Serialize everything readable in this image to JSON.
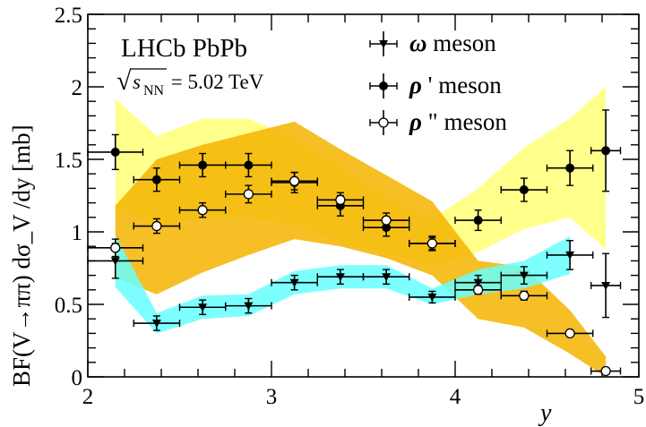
{
  "chart_data": {
    "type": "scatter",
    "title": "LHCb PbPb",
    "subtitle": {
      "sqrt": "√",
      "symbol": "s",
      "subscript": "NN",
      "value": " = 5.02 TeV"
    },
    "xlabel": "y",
    "ylabel": "BF(V→ππ) dσ_V /dy [mb]",
    "xlim": [
      2,
      5
    ],
    "ylim": [
      0,
      2.5
    ],
    "xticks": [
      "2",
      "3",
      "4",
      "5"
    ],
    "yticks": [
      "0",
      "0.5",
      "1",
      "1.5",
      "2",
      "2.5"
    ],
    "legend_position": "top-right",
    "colors": {
      "rho_prime_band": "#ffff80",
      "rho_doubleprime_band": "#f5b400",
      "omega_band": "#66ffff",
      "markers": "#000000"
    },
    "series": [
      {
        "name": "ω meson",
        "legend_symbol": "ω",
        "legend_suffix": " meson",
        "marker": "triangle-down",
        "points": [
          {
            "x": 2.15,
            "xerr": 0.15,
            "y": 0.8,
            "yerr": 0.12
          },
          {
            "x": 2.375,
            "xerr": 0.125,
            "y": 0.37,
            "yerr": 0.05
          },
          {
            "x": 2.625,
            "xerr": 0.125,
            "y": 0.48,
            "yerr": 0.05
          },
          {
            "x": 2.875,
            "xerr": 0.125,
            "y": 0.49,
            "yerr": 0.05
          },
          {
            "x": 3.125,
            "xerr": 0.125,
            "y": 0.65,
            "yerr": 0.05
          },
          {
            "x": 3.375,
            "xerr": 0.125,
            "y": 0.69,
            "yerr": 0.05
          },
          {
            "x": 3.625,
            "xerr": 0.125,
            "y": 0.69,
            "yerr": 0.05
          },
          {
            "x": 3.875,
            "xerr": 0.125,
            "y": 0.55,
            "yerr": 0.04
          },
          {
            "x": 4.125,
            "xerr": 0.125,
            "y": 0.65,
            "yerr": 0.05
          },
          {
            "x": 4.375,
            "xerr": 0.125,
            "y": 0.7,
            "yerr": 0.06
          },
          {
            "x": 4.625,
            "xerr": 0.125,
            "y": 0.84,
            "yerr": 0.1
          },
          {
            "x": 4.82,
            "xerr": 0.08,
            "y": 0.63,
            "yerr": 0.22
          }
        ],
        "band": [
          {
            "x": 2.15,
            "lo": 0.62,
            "hi": 0.98
          },
          {
            "x": 2.375,
            "lo": 0.3,
            "hi": 0.44
          },
          {
            "x": 2.625,
            "lo": 0.4,
            "hi": 0.56
          },
          {
            "x": 2.875,
            "lo": 0.42,
            "hi": 0.57
          },
          {
            "x": 3.125,
            "lo": 0.57,
            "hi": 0.73
          },
          {
            "x": 3.375,
            "lo": 0.61,
            "hi": 0.77
          },
          {
            "x": 3.625,
            "lo": 0.61,
            "hi": 0.77
          },
          {
            "x": 3.875,
            "lo": 0.5,
            "hi": 0.61
          },
          {
            "x": 4.125,
            "lo": 0.57,
            "hi": 0.74
          },
          {
            "x": 4.375,
            "lo": 0.61,
            "hi": 0.8
          },
          {
            "x": 4.625,
            "lo": 0.71,
            "hi": 0.97
          }
        ]
      },
      {
        "name": "ρ' meson",
        "legend_symbol": "ρ",
        "legend_suffix": " ' meson",
        "marker": "circle-filled",
        "points": [
          {
            "x": 2.15,
            "xerr": 0.15,
            "y": 1.55,
            "yerr": 0.12
          },
          {
            "x": 2.375,
            "xerr": 0.125,
            "y": 1.36,
            "yerr": 0.08
          },
          {
            "x": 2.625,
            "xerr": 0.125,
            "y": 1.46,
            "yerr": 0.08
          },
          {
            "x": 2.875,
            "xerr": 0.125,
            "y": 1.46,
            "yerr": 0.08
          },
          {
            "x": 3.125,
            "xerr": 0.125,
            "y": 1.34,
            "yerr": 0.07
          },
          {
            "x": 3.375,
            "xerr": 0.125,
            "y": 1.18,
            "yerr": 0.07
          },
          {
            "x": 3.625,
            "xerr": 0.125,
            "y": 1.03,
            "yerr": 0.06
          },
          {
            "x": 3.875,
            "xerr": 0.125,
            "y": 0.92,
            "yerr": 0.05
          },
          {
            "x": 4.125,
            "xerr": 0.125,
            "y": 1.08,
            "yerr": 0.07
          },
          {
            "x": 4.375,
            "xerr": 0.125,
            "y": 1.29,
            "yerr": 0.08
          },
          {
            "x": 4.625,
            "xerr": 0.125,
            "y": 1.44,
            "yerr": 0.12
          },
          {
            "x": 4.82,
            "xerr": 0.08,
            "y": 1.56,
            "yerr": 0.28
          }
        ],
        "band": [
          {
            "x": 2.15,
            "lo": 1.17,
            "hi": 1.92
          },
          {
            "x": 2.375,
            "lo": 1.03,
            "hi": 1.66
          },
          {
            "x": 2.625,
            "lo": 1.1,
            "hi": 1.78
          },
          {
            "x": 2.875,
            "lo": 1.1,
            "hi": 1.78
          },
          {
            "x": 3.125,
            "lo": 1.05,
            "hi": 1.65
          },
          {
            "x": 3.375,
            "lo": 0.93,
            "hi": 1.45
          },
          {
            "x": 3.625,
            "lo": 0.85,
            "hi": 1.24
          },
          {
            "x": 3.875,
            "lo": 0.76,
            "hi": 1.09
          },
          {
            "x": 4.125,
            "lo": 0.86,
            "hi": 1.3
          },
          {
            "x": 4.375,
            "lo": 1.02,
            "hi": 1.58
          },
          {
            "x": 4.625,
            "lo": 1.1,
            "hi": 1.78
          },
          {
            "x": 4.82,
            "lo": 0.88,
            "hi": 2.0
          }
        ]
      },
      {
        "name": "ρ\" meson",
        "legend_symbol": "ρ",
        "legend_suffix": " \" meson",
        "marker": "circle-open",
        "points": [
          {
            "x": 2.15,
            "xerr": 0.15,
            "y": 0.89,
            "yerr": 0.06
          },
          {
            "x": 2.375,
            "xerr": 0.125,
            "y": 1.04,
            "yerr": 0.05
          },
          {
            "x": 2.625,
            "xerr": 0.125,
            "y": 1.15,
            "yerr": 0.05
          },
          {
            "x": 2.875,
            "xerr": 0.125,
            "y": 1.26,
            "yerr": 0.06
          },
          {
            "x": 3.125,
            "xerr": 0.125,
            "y": 1.35,
            "yerr": 0.06
          },
          {
            "x": 3.375,
            "xerr": 0.125,
            "y": 1.22,
            "yerr": 0.05
          },
          {
            "x": 3.625,
            "xerr": 0.125,
            "y": 1.08,
            "yerr": 0.05
          },
          {
            "x": 3.875,
            "xerr": 0.125,
            "y": 0.92,
            "yerr": 0.04
          },
          {
            "x": 4.125,
            "xerr": 0.125,
            "y": 0.6,
            "yerr": 0.03
          },
          {
            "x": 4.375,
            "xerr": 0.125,
            "y": 0.56,
            "yerr": 0.03
          },
          {
            "x": 4.625,
            "xerr": 0.125,
            "y": 0.3,
            "yerr": 0.02
          },
          {
            "x": 4.82,
            "xerr": 0.08,
            "y": 0.04,
            "yerr": 0.02
          }
        ],
        "band": [
          {
            "x": 2.15,
            "lo": 0.68,
            "hi": 1.18
          },
          {
            "x": 2.375,
            "lo": 0.57,
            "hi": 1.5
          },
          {
            "x": 2.625,
            "lo": 0.72,
            "hi": 1.6
          },
          {
            "x": 2.875,
            "lo": 0.84,
            "hi": 1.68
          },
          {
            "x": 3.125,
            "lo": 0.95,
            "hi": 1.76
          },
          {
            "x": 3.375,
            "lo": 0.9,
            "hi": 1.57
          },
          {
            "x": 3.625,
            "lo": 0.82,
            "hi": 1.39
          },
          {
            "x": 3.875,
            "lo": 0.7,
            "hi": 1.21
          },
          {
            "x": 4.125,
            "lo": 0.4,
            "hi": 0.8
          },
          {
            "x": 4.375,
            "lo": 0.34,
            "hi": 0.76
          },
          {
            "x": 4.625,
            "lo": 0.16,
            "hi": 0.46
          },
          {
            "x": 4.82,
            "lo": 0.0,
            "hi": 0.14
          }
        ]
      }
    ]
  }
}
